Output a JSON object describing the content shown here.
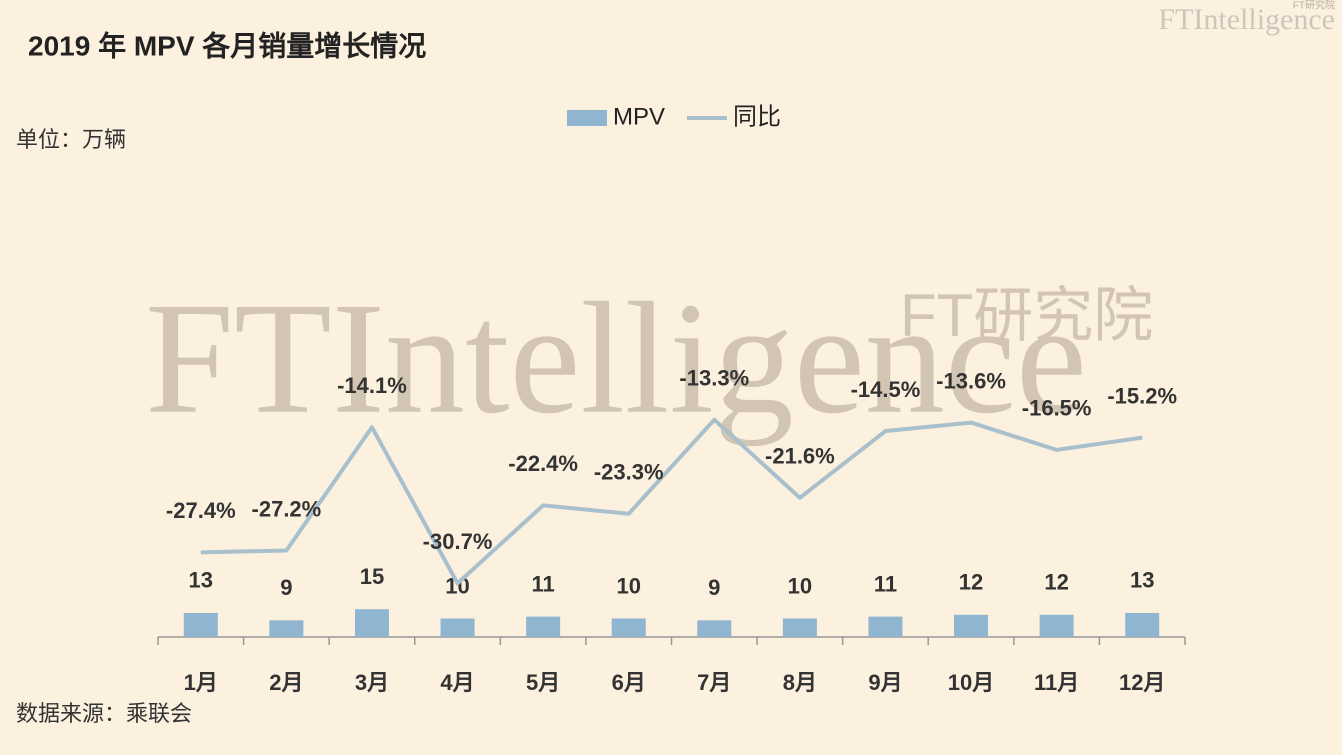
{
  "chart_data": {
    "type": "bar-line",
    "title": "2019 年 MPV 各月销量增长情况",
    "unit": "单位：万辆",
    "source": "数据来源：乘联会",
    "watermark": {
      "brand": "FTIntelligence",
      "cn": "FT研究院"
    },
    "categories": [
      "1月",
      "2月",
      "3月",
      "4月",
      "5月",
      "6月",
      "7月",
      "8月",
      "9月",
      "10月",
      "11月",
      "12月"
    ],
    "series": [
      {
        "name": "MPV",
        "type": "bar",
        "color": "#8fb5d0",
        "values": [
          13,
          9,
          15,
          10,
          11,
          10,
          9,
          10,
          11,
          12,
          12,
          13
        ]
      },
      {
        "name": "同比",
        "type": "line",
        "axis": "y2",
        "color": "#a8c0cc",
        "values": [
          -27.4,
          -27.2,
          -14.1,
          -30.7,
          -22.4,
          -23.3,
          -13.3,
          -21.6,
          -14.5,
          -13.6,
          -16.5,
          -15.2
        ],
        "value_labels": [
          "-27.4%",
          "-27.2%",
          "-14.1%",
          "-30.7%",
          "-22.4%",
          "-23.3%",
          "-13.3%",
          "-21.6%",
          "-14.5%",
          "-13.6%",
          "-16.5%",
          "-15.2%"
        ]
      }
    ],
    "ylim": [
      0,
      290
    ],
    "y2lim": [
      -36.4,
      20.7
    ],
    "legend": "top"
  }
}
